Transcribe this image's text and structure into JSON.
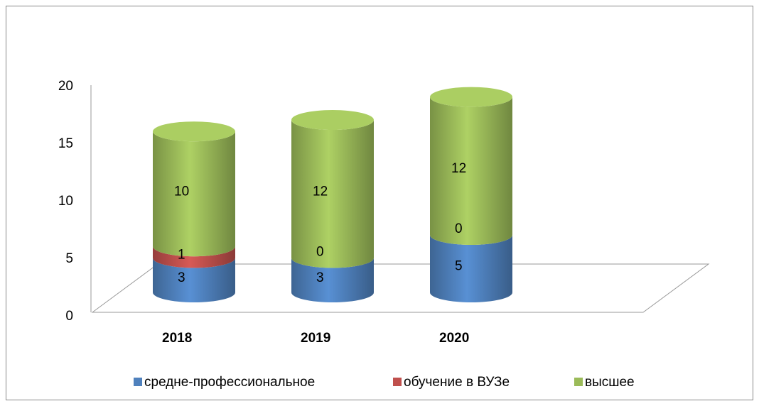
{
  "chart_data": {
    "type": "bar3d_cylinder_stacked",
    "categories": [
      "2018",
      "2019",
      "2020"
    ],
    "series": [
      {
        "name": "средне-профессиональное",
        "color": "#4f81bd",
        "values": [
          3,
          3,
          5
        ]
      },
      {
        "name": "обучение в ВУЗе",
        "color": "#c0504d",
        "values": [
          1,
          0,
          0
        ]
      },
      {
        "name": "высшее",
        "color": "#9bbb59",
        "values": [
          10,
          12,
          12
        ]
      }
    ],
    "ylim": [
      0,
      20
    ],
    "yticks": [
      0,
      5,
      10,
      15,
      20
    ],
    "legend": "bottom"
  }
}
